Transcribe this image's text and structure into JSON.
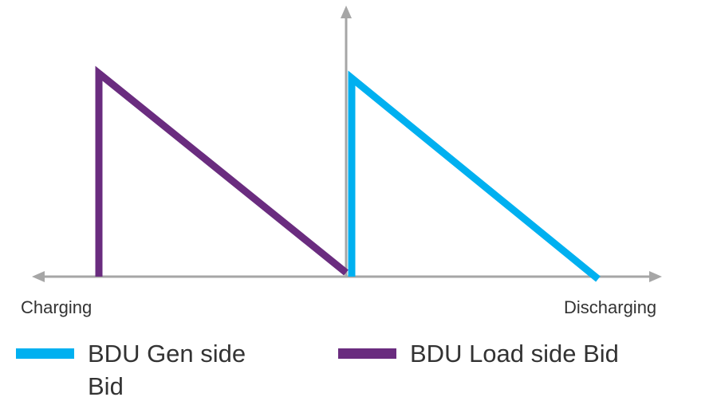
{
  "axes": {
    "left_label": "Charging",
    "right_label": "Discharging",
    "color": "#a6a6a6"
  },
  "series": [
    {
      "name": "BDU Gen side Bid",
      "name_lines": [
        "BDU Gen side",
        "Bid"
      ],
      "color": "#00b0f0"
    },
    {
      "name": "BDU Load side Bid",
      "name_lines": [
        "BDU Load side Bid"
      ],
      "color": "#6a2c7f"
    }
  ]
}
